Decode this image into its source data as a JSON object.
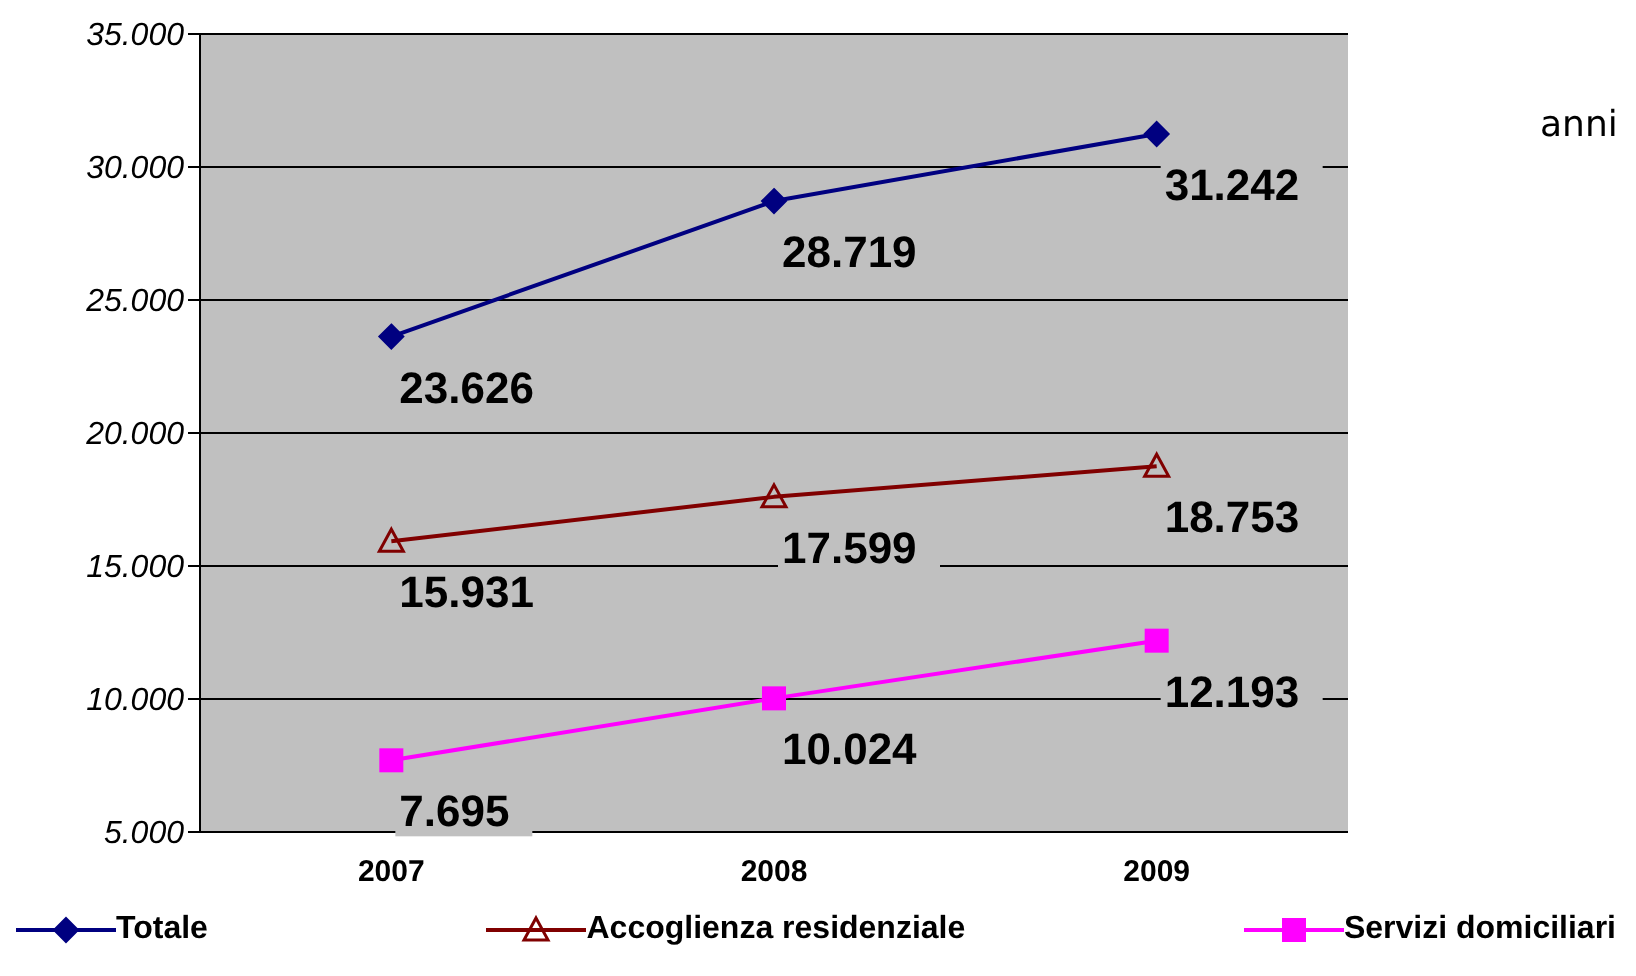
{
  "chart_data": {
    "type": "line",
    "annotations": [
      "anni"
    ],
    "categories": [
      "2007",
      "2008",
      "2009"
    ],
    "series": [
      {
        "name": "Totale",
        "color": "#000080",
        "marker": "diamond",
        "values": [
          23626,
          28719,
          31242
        ],
        "value_labels": [
          "23.626",
          "28.719",
          "31.242"
        ]
      },
      {
        "name": "Accoglienza residenziale",
        "color": "#800000",
        "marker": "triangle",
        "values": [
          15931,
          17599,
          18753
        ],
        "value_labels": [
          "15.931",
          "17.599",
          "18.753"
        ]
      },
      {
        "name": "Servizi domiciliari",
        "color": "#ff00ff",
        "marker": "square",
        "values": [
          7695,
          10024,
          12193
        ],
        "value_labels": [
          "7.695",
          "10.024",
          "12.193"
        ]
      }
    ],
    "ylim": [
      5000,
      35000
    ],
    "yticks": [
      {
        "value": 5000,
        "label": "5.000"
      },
      {
        "value": 10000,
        "label": "10.000"
      },
      {
        "value": 15000,
        "label": "15.000"
      },
      {
        "value": 20000,
        "label": "20.000"
      },
      {
        "value": 25000,
        "label": "25.000"
      },
      {
        "value": 30000,
        "label": "30.000"
      },
      {
        "value": 35000,
        "label": "35.000"
      }
    ],
    "grid": "y",
    "legend": "bottom"
  }
}
